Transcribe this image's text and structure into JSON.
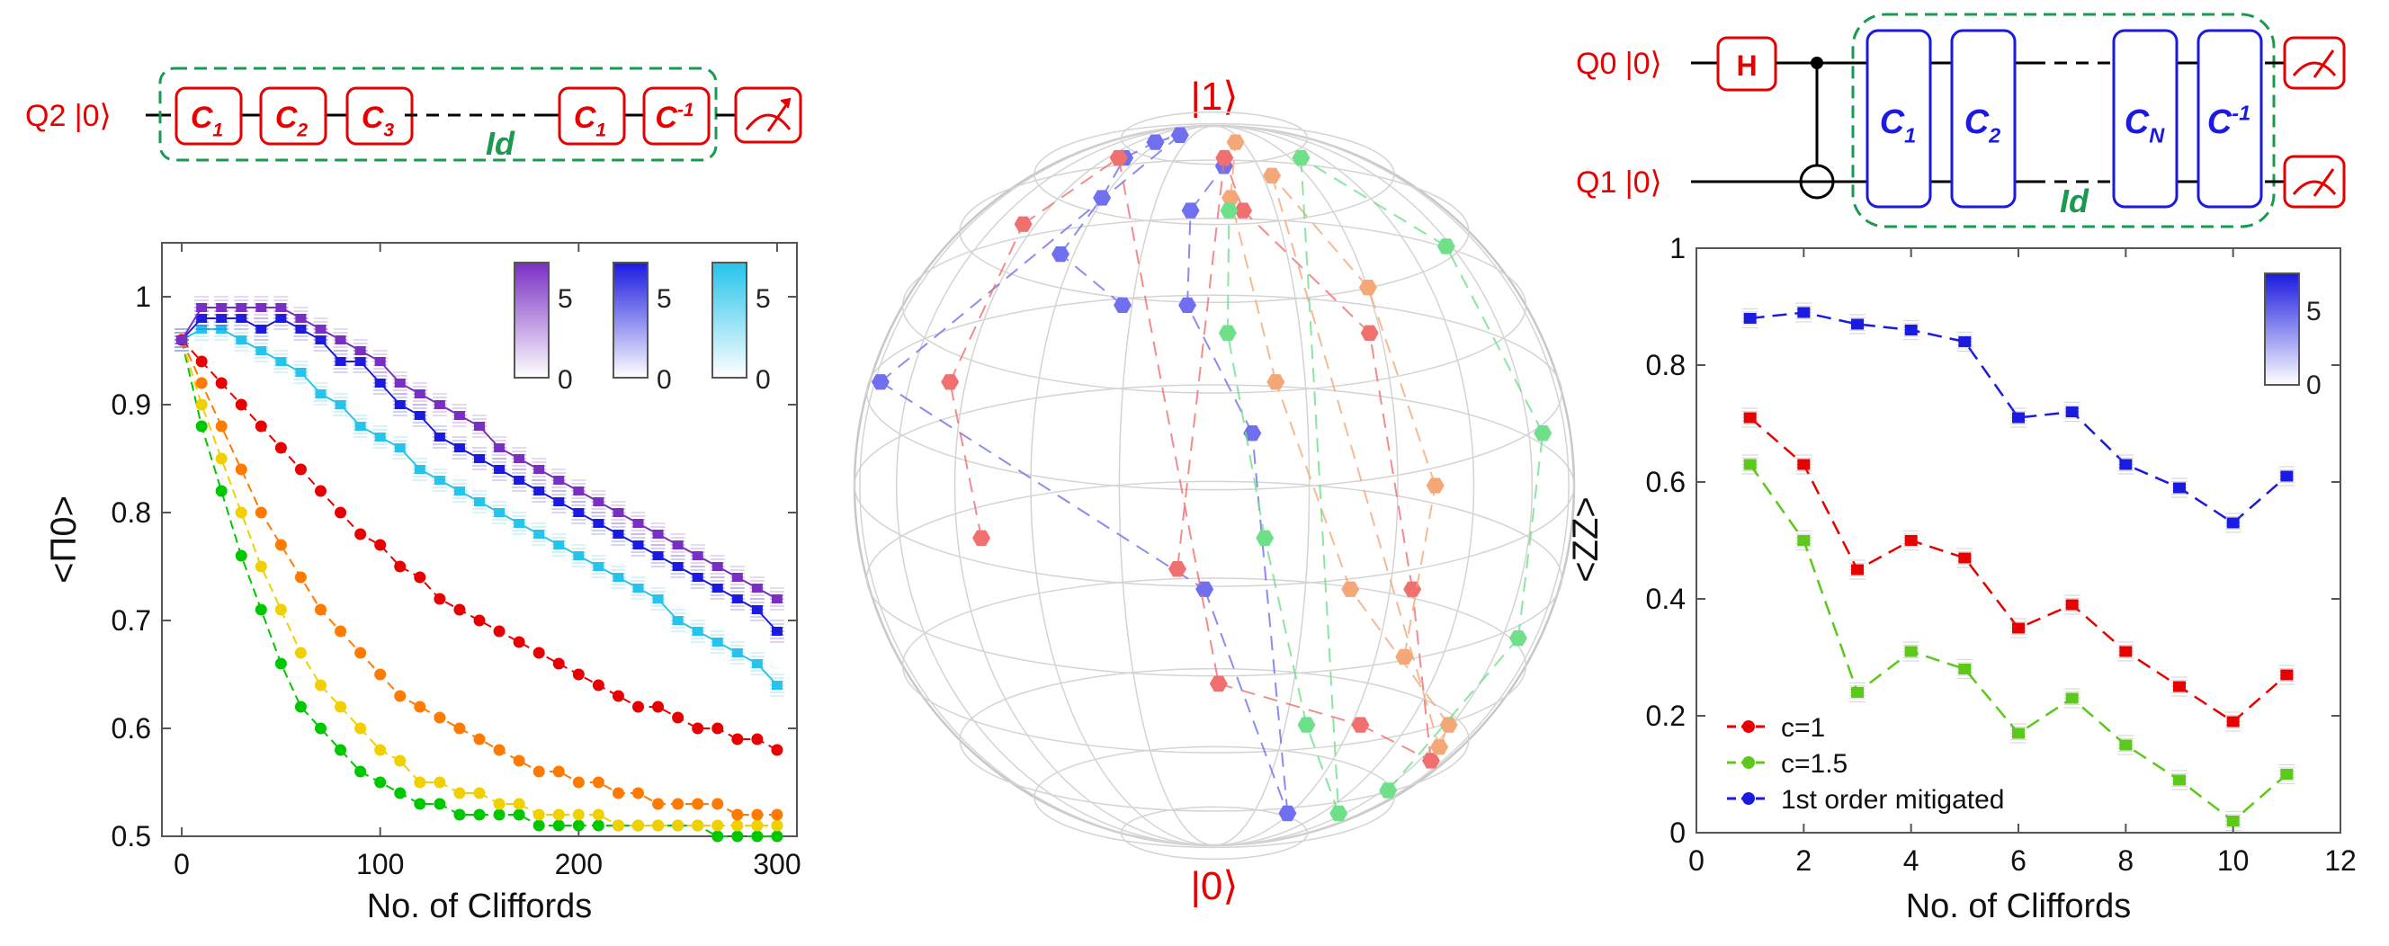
{
  "circuit_left": {
    "qubit_label": "Q2 |0⟩",
    "gates": [
      {
        "main": "C",
        "sub": "1"
      },
      {
        "main": "C",
        "sub": "2"
      },
      {
        "main": "C",
        "sub": "3"
      },
      {
        "main": "C",
        "sub": "1"
      },
      {
        "main": "C",
        "sup": "-1"
      }
    ],
    "id_label": "Id"
  },
  "circuit_right": {
    "q0_label": "Q0 |0⟩",
    "q1_label": "Q1 |0⟩",
    "h_gate": "H",
    "gates": [
      {
        "main": "C",
        "sub": "1"
      },
      {
        "main": "C",
        "sub": "2"
      },
      {
        "main": "C",
        "sub": "N"
      },
      {
        "main": "C",
        "sup": "-1"
      }
    ],
    "id_label": "Id"
  },
  "bloch": {
    "top_label": "|1⟩",
    "bottom_label": "|0⟩",
    "series": [
      {
        "color": "#6f6ff0",
        "points": [
          [
            0.68,
            -0.92,
            0.05
          ],
          [
            0.74,
            -0.84,
            0.1
          ],
          [
            0.82,
            -0.85,
            0.1
          ],
          [
            0.9,
            -0.82,
            0.18
          ],
          [
            0.95,
            -0.78,
            0.12
          ],
          [
            0.99,
            -0.72,
            0.2
          ],
          [
            0.6,
            -0.55,
            0.4
          ],
          [
            0.4,
            -0.2,
            0.6
          ],
          [
            0.1,
            -0.1,
            0.9
          ],
          [
            0.55,
            0.95,
            0.05
          ],
          [
            0.68,
            0.98,
            0.15
          ],
          [
            0.8,
            0.97,
            0.2
          ],
          [
            0.88,
            0.9,
            0.25
          ]
        ]
      },
      {
        "color": "#f07070",
        "points": [
          [
            0.45,
            -0.45,
            0.7
          ],
          [
            0.6,
            -0.47,
            0.6
          ],
          [
            0.78,
            -0.45,
            0.5
          ],
          [
            0.9,
            -0.4,
            0.45
          ],
          [
            0.3,
            -0.25,
            0.8
          ],
          [
            0.25,
            -0.1,
            0.9
          ],
          [
            0.2,
            0.3,
            0.9
          ],
          [
            0.4,
            0.55,
            0.8
          ],
          [
            0.65,
            0.65,
            0.6
          ],
          [
            0.8,
            0.8,
            0.5
          ],
          [
            0.9,
            0.88,
            0.3
          ],
          [
            0.42,
            0.97,
            0.2
          ]
        ]
      },
      {
        "color": "#f4a878",
        "points": [
          [
            0.33,
            -0.08,
            0.9
          ],
          [
            0.5,
            -0.06,
            0.85
          ],
          [
            0.7,
            -0.05,
            0.7
          ],
          [
            0.86,
            -0.05,
            0.5
          ],
          [
            0.22,
            0.08,
            0.95
          ],
          [
            0.25,
            0.35,
            0.95
          ],
          [
            0.4,
            0.6,
            0.85
          ],
          [
            0.6,
            0.72,
            0.7
          ],
          [
            0.82,
            0.8,
            0.55
          ],
          [
            0.95,
            0.82,
            0.3
          ]
        ]
      },
      {
        "color": "#6ee08a",
        "points": [
          [
            0.15,
            0.1,
            0.98
          ],
          [
            0.35,
            0.1,
            0.9
          ],
          [
            0.55,
            0.12,
            0.8
          ],
          [
            0.75,
            0.15,
            0.6
          ],
          [
            0.9,
            0.1,
            0.4
          ],
          [
            0.1,
            0.3,
            0.98
          ],
          [
            0.25,
            0.6,
            0.9
          ],
          [
            0.45,
            0.7,
            0.8
          ],
          [
            0.65,
            0.78,
            0.65
          ],
          [
            0.8,
            0.82,
            0.5
          ]
        ]
      }
    ]
  },
  "chart_data": [
    {
      "type": "scatter",
      "xlabel": "No. of Cliffords",
      "ylabel": "<Π0>",
      "xlim": [
        -10,
        310
      ],
      "ylim": [
        0.5,
        1.05
      ],
      "xticks": [
        "0",
        "100",
        "200",
        "300"
      ],
      "yticks": [
        "0.5",
        "0.6",
        "0.7",
        "0.8",
        "0.9",
        "1"
      ],
      "colorbars": [
        {
          "top": "5",
          "bottom": "0",
          "color": "#7a2fc4"
        },
        {
          "top": "5",
          "bottom": "0",
          "color": "#1a1ae0"
        },
        {
          "top": "5",
          "bottom": "0",
          "color": "#25c4ec"
        }
      ],
      "x": [
        0,
        10,
        20,
        30,
        40,
        50,
        60,
        70,
        80,
        90,
        100,
        110,
        120,
        130,
        140,
        150,
        160,
        170,
        180,
        190,
        200,
        210,
        220,
        230,
        240,
        250,
        260,
        270,
        280,
        290,
        300
      ],
      "series": [
        {
          "color": "#00c800",
          "values": [
            0.96,
            0.88,
            0.82,
            0.76,
            0.71,
            0.66,
            0.62,
            0.6,
            0.58,
            0.56,
            0.55,
            0.54,
            0.53,
            0.53,
            0.52,
            0.52,
            0.52,
            0.52,
            0.51,
            0.51,
            0.51,
            0.51,
            0.51,
            0.51,
            0.51,
            0.51,
            0.51,
            0.5,
            0.5,
            0.5,
            0.5
          ]
        },
        {
          "color": "#f0d000",
          "values": [
            0.96,
            0.9,
            0.85,
            0.8,
            0.75,
            0.71,
            0.67,
            0.64,
            0.62,
            0.6,
            0.58,
            0.57,
            0.55,
            0.55,
            0.54,
            0.54,
            0.53,
            0.53,
            0.52,
            0.52,
            0.52,
            0.52,
            0.51,
            0.51,
            0.51,
            0.51,
            0.51,
            0.51,
            0.51,
            0.51,
            0.51
          ]
        },
        {
          "color": "#ff7a00",
          "values": [
            0.96,
            0.92,
            0.88,
            0.84,
            0.8,
            0.77,
            0.74,
            0.71,
            0.69,
            0.67,
            0.65,
            0.63,
            0.62,
            0.61,
            0.6,
            0.59,
            0.58,
            0.57,
            0.56,
            0.56,
            0.55,
            0.55,
            0.54,
            0.54,
            0.53,
            0.53,
            0.53,
            0.53,
            0.52,
            0.52,
            0.52
          ]
        },
        {
          "color": "#e80000",
          "values": [
            0.96,
            0.94,
            0.92,
            0.9,
            0.88,
            0.86,
            0.84,
            0.82,
            0.8,
            0.78,
            0.77,
            0.75,
            0.74,
            0.72,
            0.71,
            0.7,
            0.69,
            0.68,
            0.67,
            0.66,
            0.65,
            0.64,
            0.63,
            0.62,
            0.62,
            0.61,
            0.6,
            0.6,
            0.59,
            0.59,
            0.58
          ]
        },
        {
          "color": "#25c4ec",
          "values": [
            0.96,
            0.97,
            0.97,
            0.96,
            0.95,
            0.94,
            0.93,
            0.91,
            0.9,
            0.88,
            0.87,
            0.86,
            0.84,
            0.83,
            0.82,
            0.81,
            0.8,
            0.79,
            0.78,
            0.77,
            0.76,
            0.75,
            0.74,
            0.73,
            0.72,
            0.7,
            0.69,
            0.68,
            0.67,
            0.66,
            0.64
          ]
        },
        {
          "color": "#1a1ae0",
          "values": [
            0.96,
            0.98,
            0.98,
            0.98,
            0.97,
            0.98,
            0.97,
            0.96,
            0.94,
            0.94,
            0.92,
            0.9,
            0.89,
            0.87,
            0.86,
            0.85,
            0.84,
            0.83,
            0.82,
            0.81,
            0.8,
            0.79,
            0.78,
            0.77,
            0.76,
            0.75,
            0.74,
            0.73,
            0.72,
            0.71,
            0.69
          ]
        },
        {
          "color": "#7a2fc4",
          "values": [
            0.96,
            0.99,
            0.99,
            0.99,
            0.99,
            0.99,
            0.98,
            0.97,
            0.96,
            0.95,
            0.94,
            0.92,
            0.91,
            0.9,
            0.89,
            0.88,
            0.86,
            0.85,
            0.84,
            0.83,
            0.82,
            0.81,
            0.8,
            0.79,
            0.78,
            0.77,
            0.76,
            0.75,
            0.74,
            0.73,
            0.72
          ]
        }
      ]
    },
    {
      "type": "line",
      "xlabel": "No. of Cliffords",
      "ylabel": "<ZZ>",
      "xlim": [
        0,
        12
      ],
      "ylim": [
        0,
        1
      ],
      "xticks": [
        "0",
        "2",
        "4",
        "6",
        "8",
        "10",
        "12"
      ],
      "yticks": [
        "0",
        "0.2",
        "0.4",
        "0.6",
        "0.8",
        "1"
      ],
      "legend_position": "bottom-left",
      "colorbar": {
        "top": "5",
        "bottom": "0",
        "color": "#1a1ae0"
      },
      "x": [
        1,
        2,
        3,
        4,
        5,
        6,
        7,
        8,
        9,
        10,
        11
      ],
      "series": [
        {
          "name": "c=1",
          "color": "#e80000",
          "values": [
            0.71,
            0.63,
            0.45,
            0.5,
            0.47,
            0.35,
            0.39,
            0.31,
            0.25,
            0.19,
            0.27
          ]
        },
        {
          "name": "c=1.5",
          "color": "#5cc81a",
          "values": [
            0.63,
            0.5,
            0.24,
            0.31,
            0.28,
            0.17,
            0.23,
            0.15,
            0.09,
            0.02,
            0.1
          ]
        },
        {
          "name": "1st order mitigated",
          "color": "#1a1ae0",
          "values": [
            0.88,
            0.89,
            0.87,
            0.86,
            0.84,
            0.71,
            0.72,
            0.63,
            0.59,
            0.53,
            0.61
          ]
        }
      ]
    }
  ]
}
